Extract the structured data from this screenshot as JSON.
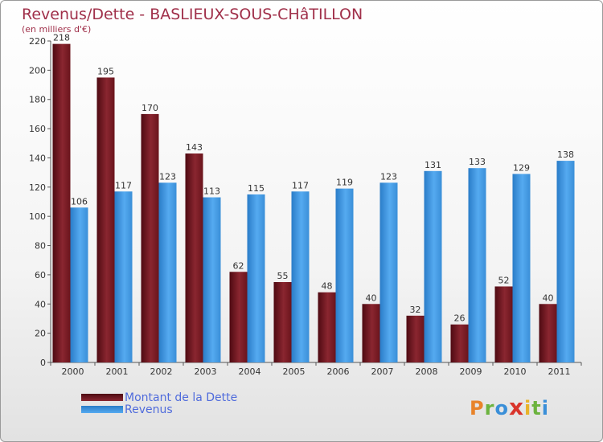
{
  "chart": {
    "title": "Revenus/Dette - BASLIEUX-SOUS-CHâTILLON",
    "subtitle": "(en milliers d'€)"
  },
  "colors": {
    "debt": "#7a1c24",
    "revenue": "#3a8fd8",
    "title": "#a0304a",
    "legend_text": "#4f6bdc"
  },
  "chart_data": {
    "type": "bar",
    "categories": [
      "2000",
      "2001",
      "2002",
      "2003",
      "2004",
      "2005",
      "2006",
      "2007",
      "2008",
      "2009",
      "2010",
      "2011"
    ],
    "series": [
      {
        "name": "Montant de la Dette",
        "values": [
          218,
          195,
          170,
          143,
          62,
          55,
          48,
          40,
          32,
          26,
          52,
          40
        ]
      },
      {
        "name": "Revenus",
        "values": [
          106,
          117,
          123,
          113,
          115,
          117,
          119,
          123,
          131,
          133,
          129,
          138
        ]
      }
    ],
    "ylim": [
      0,
      220
    ],
    "yticks": [
      0,
      20,
      40,
      60,
      80,
      100,
      120,
      140,
      160,
      180,
      200,
      220
    ],
    "grid": false,
    "legend": "bottom-left"
  },
  "logo": {
    "letters": [
      "P",
      "r",
      "o",
      "x",
      "i",
      "t",
      "i"
    ]
  }
}
